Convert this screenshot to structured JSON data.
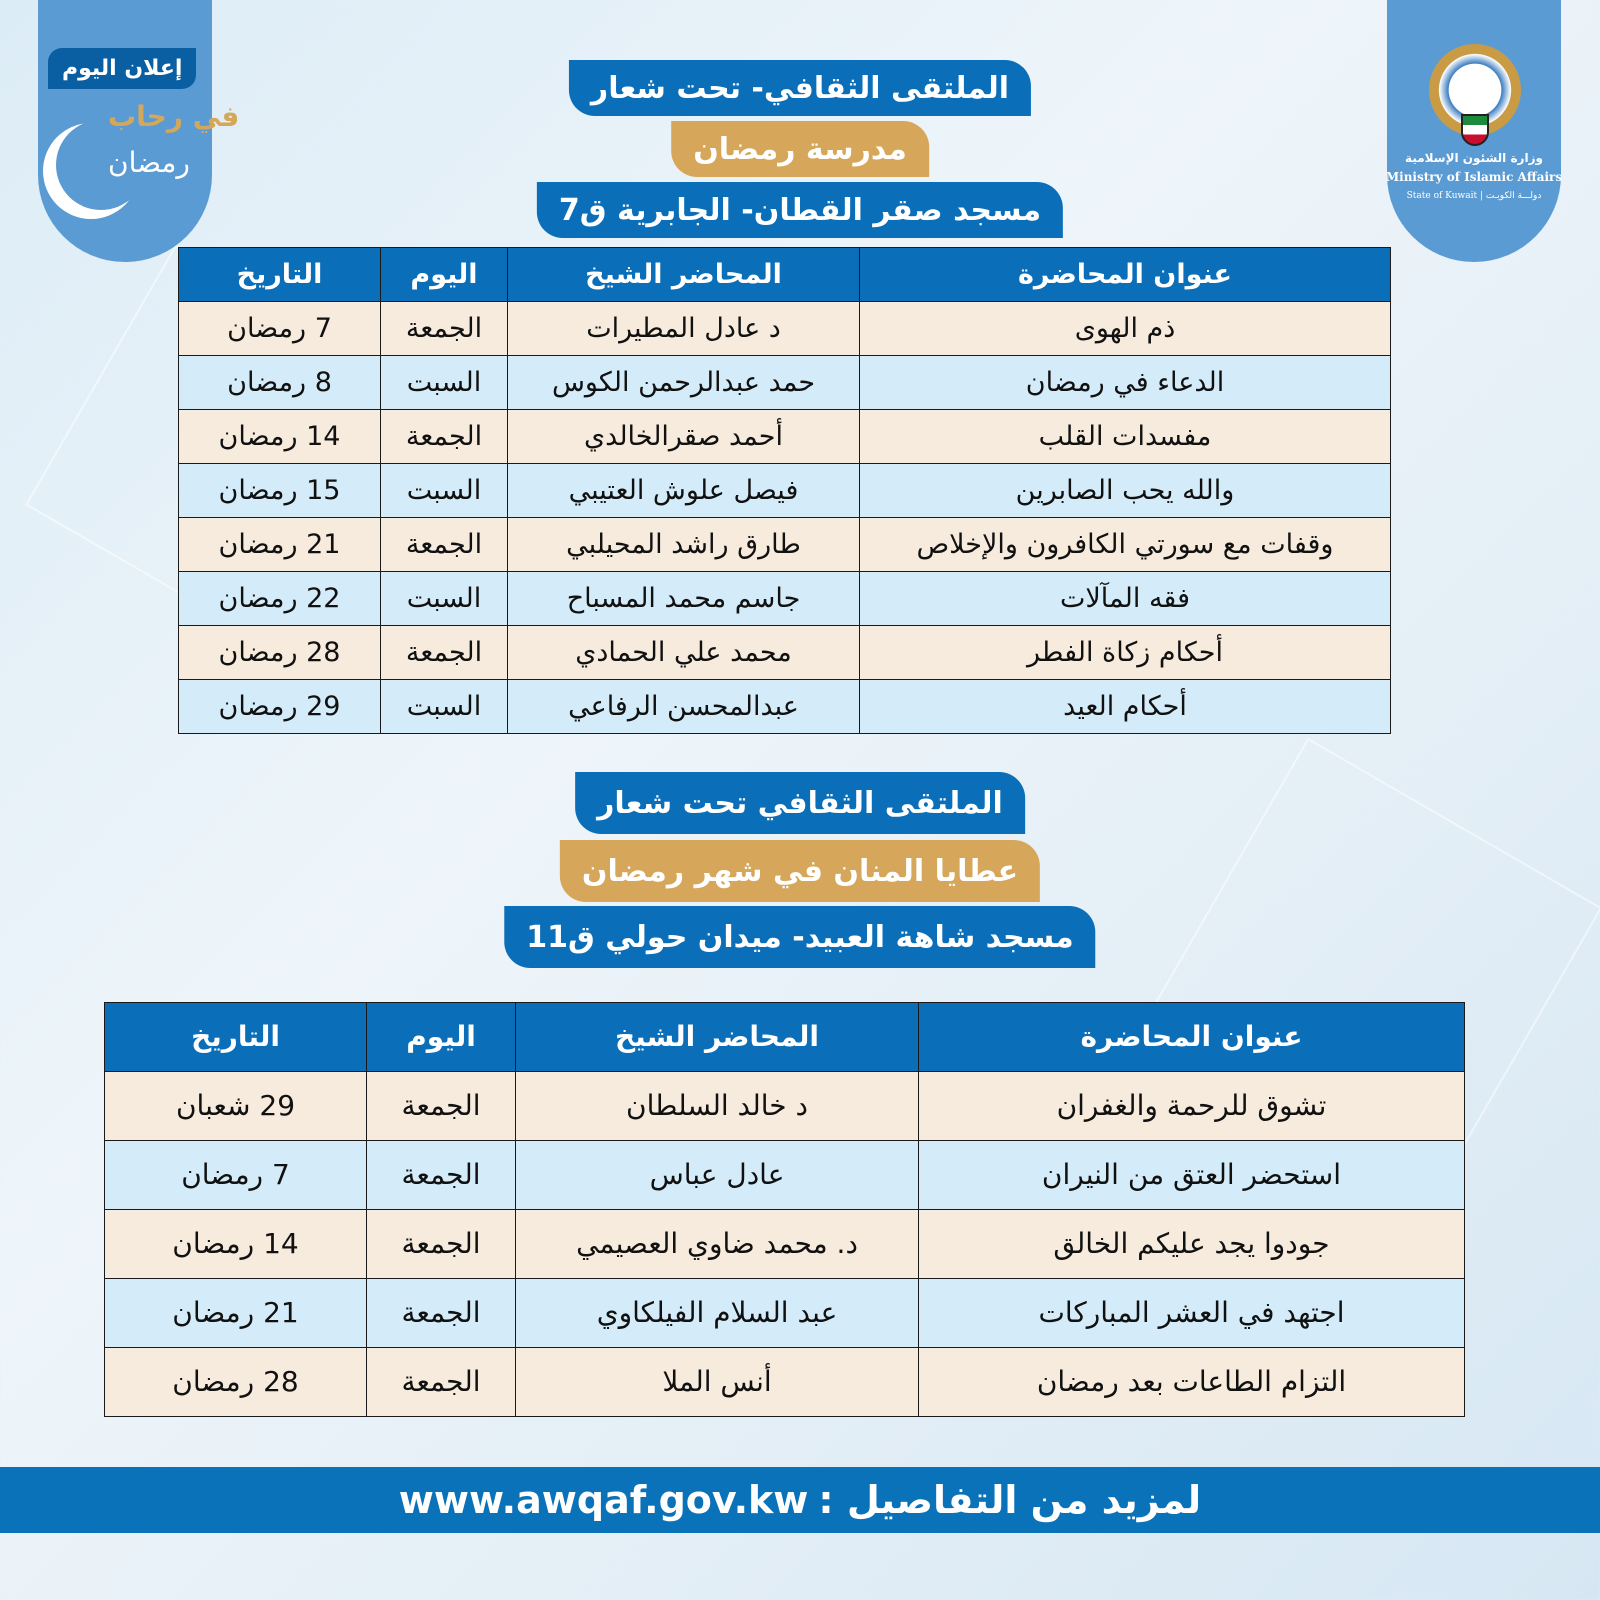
{
  "colors": {
    "primary": "#0a6fb8",
    "gold": "#d6a75a",
    "row_beige": "#f6ebdd",
    "row_blue": "#d4ecf9"
  },
  "left_badge": {
    "label": "إعلان اليوم",
    "calligraphy_line1": "في رحاب",
    "calligraphy_line2": "رمضان"
  },
  "ministry": {
    "name_ar": "وزارة الشئون الإسلامية",
    "name_en": "Ministry of Islamic Affairs",
    "state": "State of Kuwait | دولـــة الكويـت",
    "emblem_text": "دولة الكويت"
  },
  "section1": {
    "banner1": "الملتقى الثقافي- تحت شعار",
    "banner2": "مدرسة رمضان",
    "banner3": "مسجد صقر القطان- الجابرية ق7",
    "headers": [
      "عنوان المحاضرة",
      "المحاضر الشيخ",
      "اليوم",
      "التاريخ"
    ],
    "rows": [
      [
        "ذم الهوى",
        "د عادل المطيرات",
        "الجمعة",
        "7 رمضان"
      ],
      [
        "الدعاء في رمضان",
        "حمد عبدالرحمن الكوس",
        "السبت",
        "8 رمضان"
      ],
      [
        "مفسدات القلب",
        "أحمد صقرالخالدي",
        "الجمعة",
        "14 رمضان"
      ],
      [
        "والله يحب الصابرين",
        "فيصل علوش العتيبي",
        "السبت",
        "15 رمضان"
      ],
      [
        "وقفات مع سورتي الكافرون والإخلاص",
        "طارق راشد المحيلبي",
        "الجمعة",
        "21 رمضان"
      ],
      [
        "فقه المآلات",
        "جاسم محمد المسباح",
        "السبت",
        "22 رمضان"
      ],
      [
        "أحكام زكاة الفطر",
        "محمد علي الحمادي",
        "الجمعة",
        "28 رمضان"
      ],
      [
        "أحكام العيد",
        "عبدالمحسن الرفاعي",
        "السبت",
        "29 رمضان"
      ]
    ]
  },
  "section2": {
    "banner1": "الملتقى الثقافي تحت شعار",
    "banner2": "عطايا المنان في شهر رمضان",
    "banner3": "مسجد شاهة العبيد- ميدان حولي ق11",
    "headers": [
      "عنوان المحاضرة",
      "المحاضر الشيخ",
      "اليوم",
      "التاريخ"
    ],
    "rows": [
      [
        "تشوق للرحمة والغفران",
        "د خالد السلطان",
        "الجمعة",
        "29 شعبان"
      ],
      [
        "استحضر العتق من النيران",
        "عادل عباس",
        "الجمعة",
        "7 رمضان"
      ],
      [
        "جودوا يجد عليكم الخالق",
        "د. محمد ضاوي العصيمي",
        "الجمعة",
        "14 رمضان"
      ],
      [
        "اجتهد في العشر المباركات",
        "عبد السلام الفيلكاوي",
        "الجمعة",
        "21 رمضان"
      ],
      [
        "التزام الطاعات بعد رمضان",
        "أنس الملا",
        "الجمعة",
        "28 رمضان"
      ]
    ]
  },
  "footer": {
    "label": "لمزيد من التفاصيل :",
    "url": "www.awqaf.gov.kw"
  }
}
